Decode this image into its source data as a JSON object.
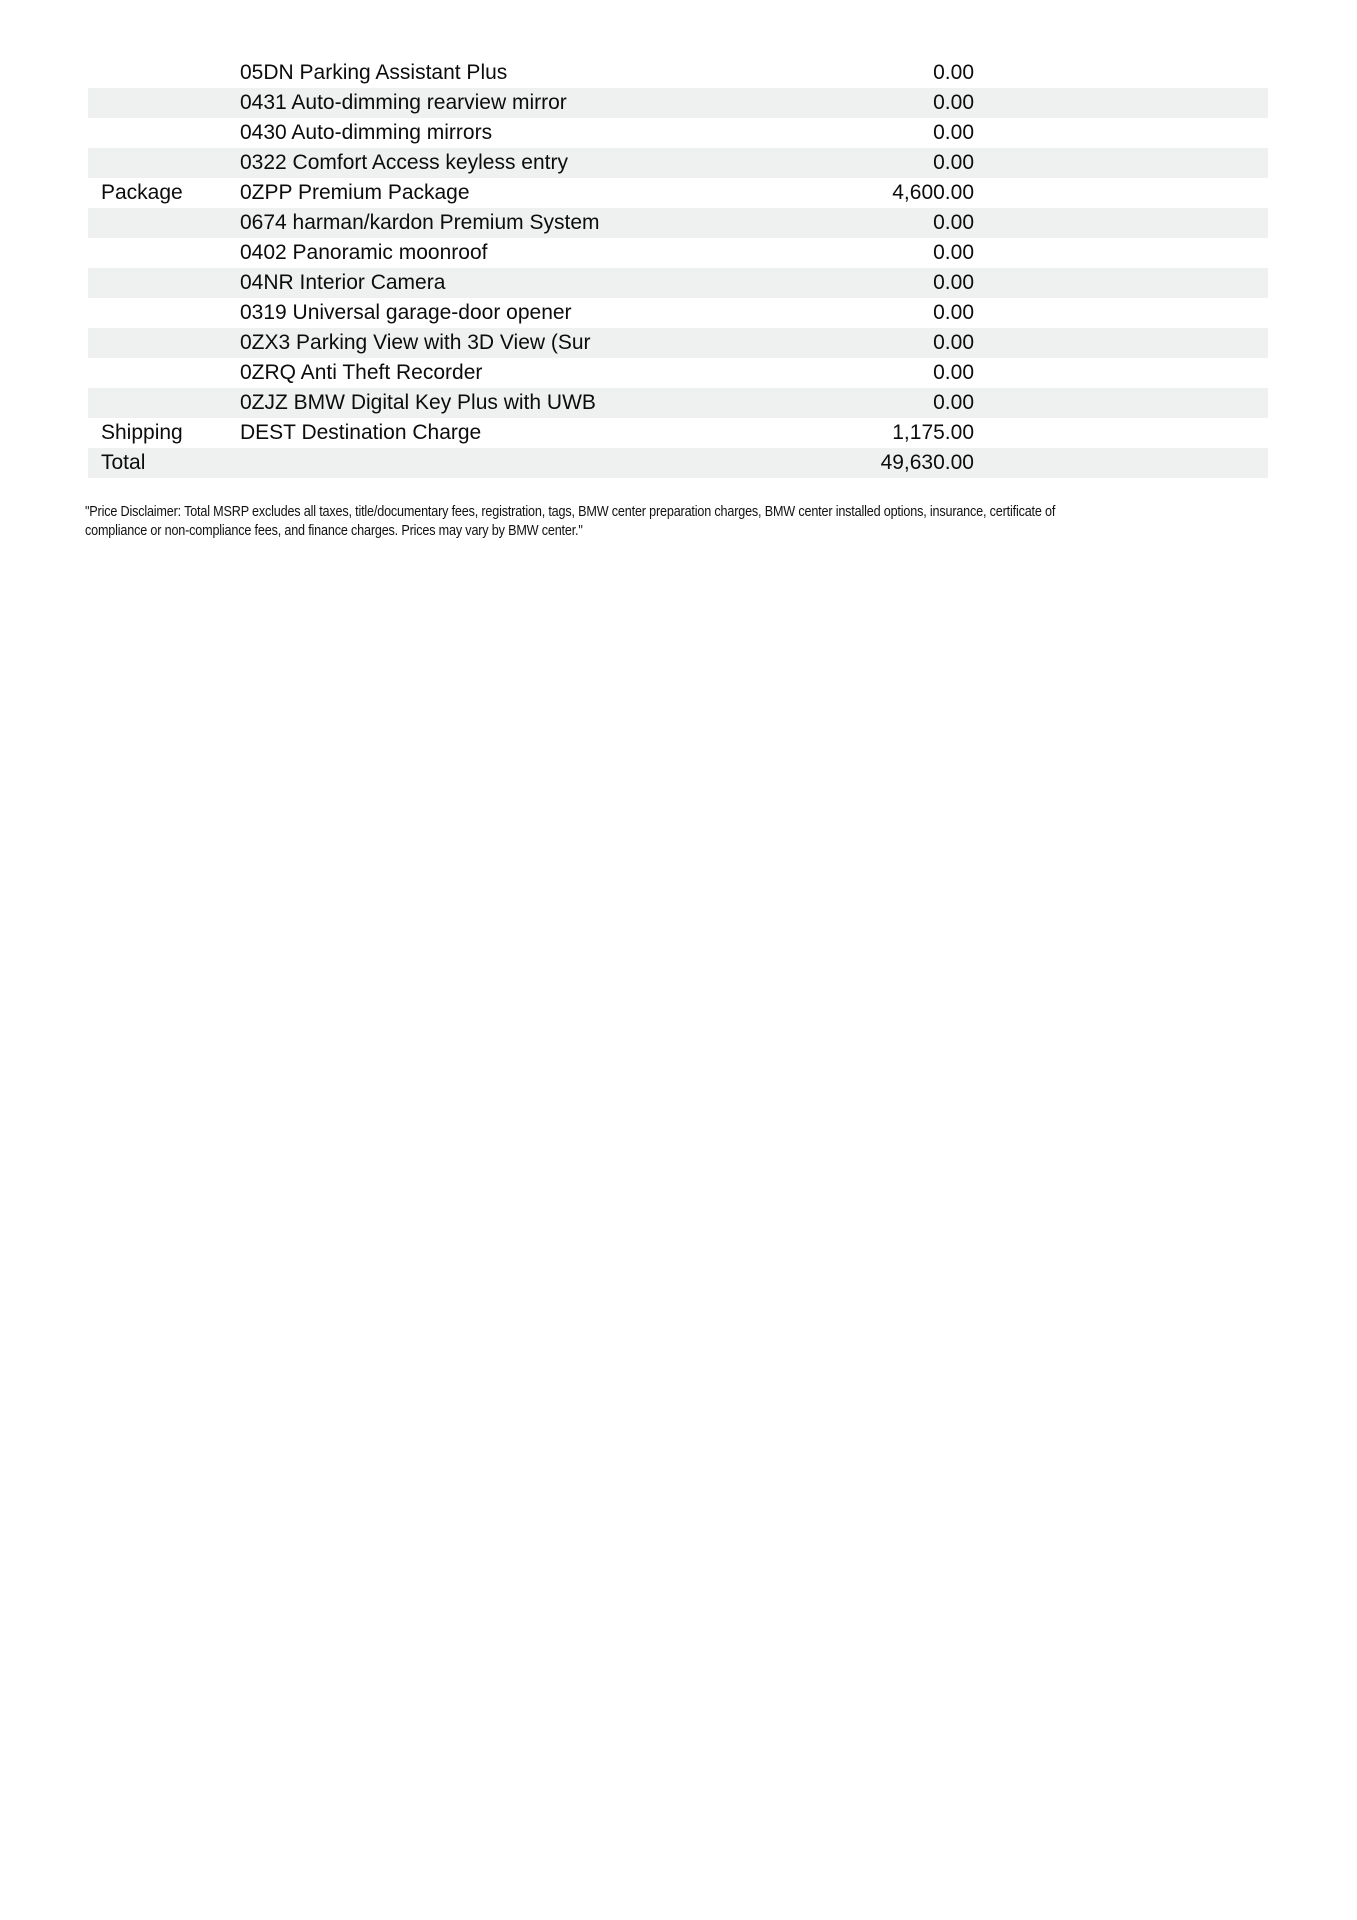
{
  "colors": {
    "row_shade": "#eff1f1",
    "text": "#0c0c0c",
    "page_background": "#ffffff"
  },
  "table": {
    "columns": [
      "category",
      "item",
      "price"
    ],
    "rows": [
      {
        "category": "",
        "item": "05DN Parking Assistant Plus",
        "value": "0.00"
      },
      {
        "category": "",
        "item": "0431 Auto-dimming rearview mirror",
        "value": "0.00"
      },
      {
        "category": "",
        "item": "0430 Auto-dimming mirrors",
        "value": "0.00"
      },
      {
        "category": "",
        "item": "0322 Comfort Access keyless entry",
        "value": "0.00"
      },
      {
        "category": "Package",
        "item": "0ZPP Premium Package",
        "value": "4,600.00"
      },
      {
        "category": "",
        "item": "0674 harman/kardon Premium System",
        "value": "0.00"
      },
      {
        "category": "",
        "item": "0402 Panoramic moonroof",
        "value": "0.00"
      },
      {
        "category": "",
        "item": "04NR Interior Camera",
        "value": "0.00"
      },
      {
        "category": "",
        "item": "0319 Universal garage-door opener",
        "value": "0.00"
      },
      {
        "category": "",
        "item": "0ZX3 Parking View with 3D View (Sur",
        "value": "0.00"
      },
      {
        "category": "",
        "item": "0ZRQ Anti Theft Recorder",
        "value": "0.00"
      },
      {
        "category": "",
        "item": "0ZJZ BMW Digital Key Plus with UWB",
        "value": "0.00"
      },
      {
        "category": "Shipping",
        "item": "DEST Destination Charge",
        "value": "1,175.00"
      },
      {
        "category": "Total",
        "item": "",
        "value": "49,630.00"
      }
    ]
  },
  "disclaimer": {
    "line1": "\"Price Disclaimer: Total MSRP excludes all taxes, title/documentary fees, registration, tags, BMW center preparation charges, BMW center installed options, insurance, certificate of",
    "line2": "compliance or non-compliance fees, and finance charges. Prices may vary by BMW center.\""
  }
}
